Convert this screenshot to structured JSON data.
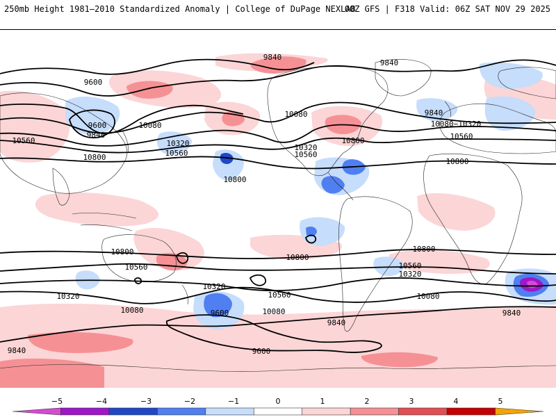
{
  "header": {
    "left": "250mb Height 1981–2010 Standardized Anomaly | College of DuPage NEXLAB",
    "right": "00Z GFS | F318 Valid: 06Z SAT NOV 29 2025"
  },
  "map": {
    "variable": "250mb geopotential height",
    "anomaly_colors": {
      "neg5": "#d54bd3",
      "neg4": "#9c18c8",
      "neg3": "#1f47c8",
      "neg2": "#4f7ff0",
      "neg1": "#c6ddfb",
      "pos1": "#fcd5d6",
      "pos2": "#f59195",
      "pos3": "#e24f52",
      "pos4": "#c40000",
      "pos5": "#f5a300"
    },
    "contour_labels": [
      {
        "id": "lbl-9840-a",
        "text": "9840"
      },
      {
        "id": "lbl-9600-a",
        "text": "9600"
      },
      {
        "id": "lbl-9840-b",
        "text": "9840"
      },
      {
        "id": "lbl-9600-b",
        "text": "9600"
      },
      {
        "id": "lbl-9840-c",
        "text": "9840"
      },
      {
        "id": "lbl-10080-a",
        "text": "10080"
      },
      {
        "id": "lbl-10560-a",
        "text": "10560"
      },
      {
        "id": "lbl-10320-a",
        "text": "10320"
      },
      {
        "id": "lbl-10560-b",
        "text": "10560"
      },
      {
        "id": "lbl-10800-a",
        "text": "10800"
      },
      {
        "id": "lbl-10800-b",
        "text": "10800"
      },
      {
        "id": "lbl-10080-b",
        "text": "10080"
      },
      {
        "id": "lbl-10320-b",
        "text": "10320"
      },
      {
        "id": "lbl-10560-c",
        "text": "10560"
      },
      {
        "id": "lbl-10800-c",
        "text": "10800"
      },
      {
        "id": "lbl-9840-d",
        "text": "9840"
      },
      {
        "id": "lbl-10080-c",
        "text": "10080−10320"
      },
      {
        "id": "lbl-10560-d",
        "text": "10560"
      },
      {
        "id": "lbl-10800-d",
        "text": "10800"
      },
      {
        "id": "lbl-10800-e",
        "text": "10800"
      },
      {
        "id": "lbl-10560-e",
        "text": "10560"
      },
      {
        "id": "lbl-10800-f",
        "text": "10800"
      },
      {
        "id": "lbl-10320-c",
        "text": "10320"
      },
      {
        "id": "lbl-10320-d",
        "text": "10320"
      },
      {
        "id": "lbl-10080-d",
        "text": "10080"
      },
      {
        "id": "lbl-9600-c",
        "text": "9600"
      },
      {
        "id": "lbl-10560-f",
        "text": "10560"
      },
      {
        "id": "lbl-10080-e",
        "text": "10080"
      },
      {
        "id": "lbl-9840-e",
        "text": "9840"
      },
      {
        "id": "lbl-9600-d",
        "text": "9600"
      },
      {
        "id": "lbl-10800-g",
        "text": "10800"
      },
      {
        "id": "lbl-10560-g",
        "text": "10560"
      },
      {
        "id": "lbl-10320-e",
        "text": "10320"
      },
      {
        "id": "lbl-10080-f",
        "text": "10080"
      },
      {
        "id": "lbl-9840-f",
        "text": "9840"
      },
      {
        "id": "lbl-9840-g",
        "text": "9840"
      }
    ]
  },
  "colorbar": {
    "ticks": [
      "−5",
      "−4",
      "−3",
      "−2",
      "−1",
      "0",
      "1",
      "2",
      "3",
      "4",
      "5"
    ],
    "colors": [
      "#d54bd3",
      "#9c18c8",
      "#1f47c8",
      "#4f7ff0",
      "#c6ddfb",
      "#ffffff",
      "#fcd5d6",
      "#f59195",
      "#e24f52",
      "#c40000",
      "#f5a300"
    ]
  }
}
